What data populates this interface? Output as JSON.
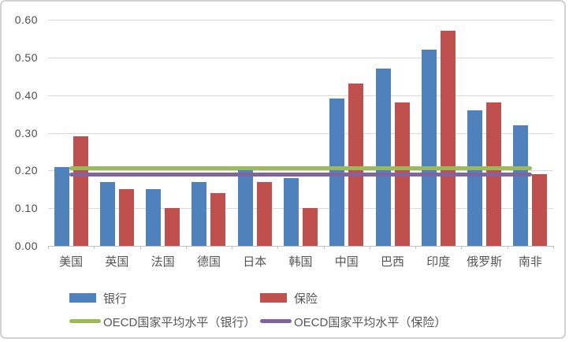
{
  "chart_data": {
    "type": "bar",
    "title": "",
    "xlabel": "",
    "ylabel": "",
    "categories": [
      "美国",
      "英国",
      "法国",
      "德国",
      "日本",
      "韩国",
      "中国",
      "巴西",
      "印度",
      "俄罗斯",
      "南非"
    ],
    "series": [
      {
        "key": "bank",
        "name": "银行",
        "render": "bar",
        "color": "#4f81bd",
        "values": [
          0.21,
          0.17,
          0.15,
          0.17,
          0.2,
          0.18,
          0.39,
          0.47,
          0.52,
          0.36,
          0.32
        ]
      },
      {
        "key": "insurance",
        "name": "保险",
        "render": "bar",
        "color": "#c0504d",
        "values": [
          0.29,
          0.15,
          0.1,
          0.14,
          0.17,
          0.1,
          0.43,
          0.38,
          0.57,
          0.38,
          0.19
        ]
      },
      {
        "key": "oecd-bank-avg",
        "name": "OECD国家平均水平（银行）",
        "render": "line",
        "color": "#9bbb59",
        "value": 0.205
      },
      {
        "key": "oecd-insurance-avg",
        "name": "OECD国家平均水平（保险）",
        "render": "line",
        "color": "#8064a2",
        "value": 0.19
      }
    ],
    "ylim": [
      0,
      0.6
    ],
    "yticks": [
      "0.00",
      "0.10",
      "0.20",
      "0.30",
      "0.40",
      "0.50",
      "0.60"
    ],
    "grid": true,
    "legend_position": "bottom"
  },
  "colors": {
    "grid": "#d9d9d9",
    "axis": "#bfbfbf",
    "tick_text": "#4d4d4d",
    "border": "#d2d0d0",
    "background": "#ffffff"
  }
}
